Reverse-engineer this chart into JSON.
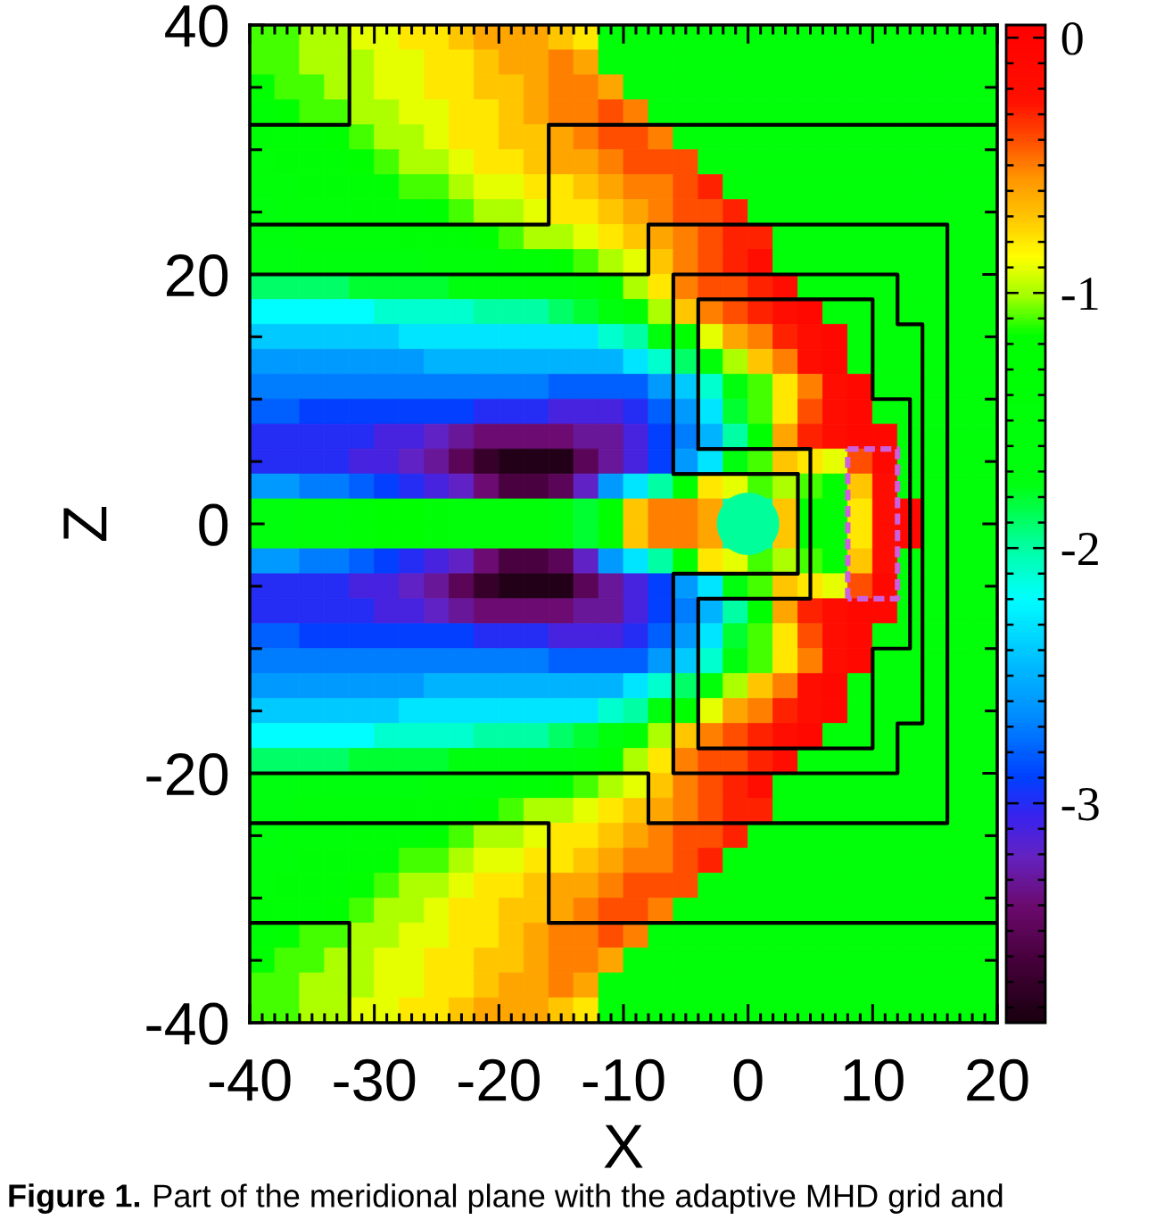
{
  "chart_data": {
    "type": "heatmap",
    "xlabel": "X",
    "ylabel": "Z",
    "annotations": [
      "Figure 1.",
      "Part of the meridional plane with the adaptive MHD grid and"
    ],
    "x": [
      -39,
      -37,
      -35,
      -33,
      -31,
      -29,
      -27,
      -25,
      -23,
      -21,
      -19,
      -17,
      -15,
      -13,
      -11,
      -9,
      -7,
      -5,
      -3,
      -1,
      1,
      3,
      5,
      7,
      9,
      11,
      13,
      15,
      17,
      19
    ],
    "y": [
      39,
      37,
      35,
      33,
      31,
      29,
      27,
      25,
      23,
      21,
      19,
      17,
      15,
      13,
      11,
      9,
      7,
      5,
      3,
      1,
      -1,
      -3,
      -5,
      -7,
      -9,
      -11,
      -13,
      -15,
      -17,
      -19,
      -21,
      -23,
      -25,
      -27,
      -29,
      -31,
      -33,
      -35,
      -37,
      -39
    ],
    "cells": [
      [
        -1.1,
        -1.1,
        -1.0,
        -1.0,
        -0.9,
        -0.9,
        -0.8,
        -0.8,
        -0.7,
        -0.6,
        -0.6,
        -0.6,
        -0.7,
        -0.8,
        -1.5,
        -1.5,
        -1.5,
        -1.5,
        -1.5,
        -1.5,
        -1.5,
        -1.5,
        -1.5,
        -1.5,
        -1.5,
        -1.5,
        -1.5,
        -1.5,
        -1.5,
        -1.5
      ],
      [
        -1.1,
        -1.1,
        -1.0,
        -1.0,
        -1.0,
        -0.9,
        -0.9,
        -0.8,
        -0.8,
        -0.7,
        -0.6,
        -0.6,
        -0.5,
        -0.6,
        -1.5,
        -1.5,
        -1.5,
        -1.5,
        -1.5,
        -1.5,
        -1.5,
        -1.5,
        -1.5,
        -1.5,
        -1.5,
        -1.5,
        -1.5,
        -1.5,
        -1.5,
        -1.5
      ],
      [
        -1.2,
        -1.1,
        -1.1,
        -1.0,
        -1.0,
        -0.9,
        -0.9,
        -0.8,
        -0.8,
        -0.7,
        -0.7,
        -0.6,
        -0.5,
        -0.5,
        -0.6,
        -1.5,
        -1.5,
        -1.5,
        -1.5,
        -1.5,
        -1.5,
        -1.5,
        -1.5,
        -1.5,
        -1.5,
        -1.5,
        -1.5,
        -1.5,
        -1.5,
        -1.5
      ],
      [
        -1.3,
        -1.2,
        -1.1,
        -1.1,
        -1.0,
        -1.0,
        -0.9,
        -0.9,
        -0.8,
        -0.8,
        -0.7,
        -0.6,
        -0.5,
        -0.5,
        -0.4,
        -0.5,
        -1.5,
        -1.5,
        -1.5,
        -1.5,
        -1.5,
        -1.5,
        -1.5,
        -1.5,
        -1.5,
        -1.5,
        -1.5,
        -1.5,
        -1.5,
        -1.5
      ],
      [
        -1.4,
        -1.3,
        -1.3,
        -1.2,
        -1.1,
        -1.0,
        -1.0,
        -0.9,
        -0.8,
        -0.8,
        -0.7,
        -0.7,
        -0.6,
        -0.5,
        -0.4,
        -0.4,
        -0.5,
        -1.5,
        -1.5,
        -1.5,
        -1.5,
        -1.5,
        -1.5,
        -1.5,
        -1.5,
        -1.5,
        -1.5,
        -1.5,
        -1.5,
        -1.5
      ],
      [
        -1.5,
        -1.4,
        -1.4,
        -1.3,
        -1.2,
        -1.1,
        -1.0,
        -1.0,
        -0.9,
        -0.8,
        -0.8,
        -0.7,
        -0.6,
        -0.6,
        -0.5,
        -0.4,
        -0.4,
        -0.4,
        -1.5,
        -1.5,
        -1.5,
        -1.5,
        -1.5,
        -1.5,
        -1.5,
        -1.5,
        -1.5,
        -1.5,
        -1.5,
        -1.5
      ],
      [
        -1.5,
        -1.5,
        -1.4,
        -1.4,
        -1.3,
        -1.3,
        -1.1,
        -1.1,
        -1.0,
        -0.9,
        -0.9,
        -0.8,
        -0.8,
        -0.7,
        -0.6,
        -0.5,
        -0.5,
        -0.4,
        -0.3,
        -1.5,
        -1.5,
        -1.5,
        -1.5,
        -1.5,
        -1.5,
        -1.5,
        -1.5,
        -1.5,
        -1.5,
        -1.5
      ],
      [
        -1.6,
        -1.5,
        -1.5,
        -1.5,
        -1.4,
        -1.4,
        -1.3,
        -1.2,
        -1.1,
        -1.0,
        -1.0,
        -0.9,
        -0.8,
        -0.8,
        -0.7,
        -0.6,
        -0.5,
        -0.4,
        -0.4,
        -0.3,
        -1.5,
        -1.5,
        -1.5,
        -1.5,
        -1.5,
        -1.5,
        -1.5,
        -1.5,
        -1.5,
        -1.5
      ],
      [
        -1.6,
        -1.6,
        -1.5,
        -1.5,
        -1.5,
        -1.5,
        -1.4,
        -1.4,
        -1.3,
        -1.2,
        -1.1,
        -1.0,
        -1.0,
        -0.9,
        -0.8,
        -0.7,
        -0.6,
        -0.5,
        -0.4,
        -0.3,
        -0.3,
        -1.5,
        -1.5,
        -1.5,
        -1.5,
        -1.5,
        -1.5,
        -1.5,
        -1.5,
        -1.5
      ],
      [
        -1.7,
        -1.7,
        -1.6,
        -1.6,
        -1.6,
        -1.6,
        -1.6,
        -1.5,
        -1.5,
        -1.5,
        -1.4,
        -1.3,
        -1.2,
        -1.1,
        -1.0,
        -0.9,
        -0.7,
        -0.5,
        -0.4,
        -0.3,
        -0.2,
        -1.5,
        -1.5,
        -1.5,
        -1.5,
        -1.5,
        -1.5,
        -1.5,
        -1.5,
        -1.5
      ],
      [
        -1.9,
        -1.9,
        -1.9,
        -1.9,
        -1.8,
        -1.8,
        -1.8,
        -1.8,
        -1.7,
        -1.7,
        -1.7,
        -1.6,
        -1.6,
        -1.5,
        -1.2,
        -1.0,
        -0.8,
        -0.5,
        -0.4,
        -0.4,
        -0.3,
        -0.2,
        -1.5,
        -1.5,
        -1.5,
        -1.5,
        -1.5,
        -1.5,
        -1.5,
        -1.5
      ],
      [
        -2.2,
        -2.2,
        -2.2,
        -2.2,
        -2.2,
        -2.1,
        -2.1,
        -2.1,
        -2.1,
        -2.0,
        -2.0,
        -2.0,
        -1.9,
        -1.8,
        -1.6,
        -1.3,
        -1.0,
        -0.7,
        -0.5,
        -0.4,
        -0.3,
        -0.2,
        -0.1,
        -1.5,
        -1.5,
        -1.5,
        -1.5,
        -1.5,
        -1.5,
        -1.5
      ],
      [
        -2.4,
        -2.4,
        -2.4,
        -2.4,
        -2.4,
        -2.4,
        -2.3,
        -2.3,
        -2.3,
        -2.3,
        -2.3,
        -2.3,
        -2.3,
        -2.3,
        -2.1,
        -2.0,
        -1.6,
        -1.2,
        -0.9,
        -0.6,
        -0.5,
        -0.3,
        -0.2,
        -0.1,
        -1.5,
        -1.5,
        -1.5,
        -1.5,
        -1.5,
        -1.5
      ],
      [
        -2.6,
        -2.6,
        -2.6,
        -2.6,
        -2.6,
        -2.6,
        -2.6,
        -2.5,
        -2.5,
        -2.5,
        -2.5,
        -2.5,
        -2.5,
        -2.5,
        -2.5,
        -2.3,
        -2.1,
        -1.9,
        -1.5,
        -1.0,
        -0.7,
        -0.5,
        -0.2,
        -0.1,
        -1.5,
        -1.5,
        -1.5,
        -1.5,
        -1.5,
        -1.5
      ],
      [
        -2.7,
        -2.7,
        -2.7,
        -2.7,
        -2.7,
        -2.7,
        -2.7,
        -2.7,
        -2.7,
        -2.7,
        -2.7,
        -2.7,
        -2.8,
        -2.8,
        -2.8,
        -2.8,
        -2.6,
        -2.4,
        -2.1,
        -1.6,
        -1.1,
        -0.8,
        -0.5,
        -0.2,
        -0.1,
        -1.5,
        -1.5,
        -1.5,
        -1.5,
        -1.5
      ],
      [
        -2.8,
        -2.8,
        -2.9,
        -2.9,
        -2.9,
        -2.9,
        -2.9,
        -2.9,
        -2.9,
        -3.0,
        -3.0,
        -3.0,
        -3.1,
        -3.1,
        -3.1,
        -3.0,
        -2.8,
        -2.6,
        -2.3,
        -1.8,
        -1.1,
        -0.8,
        -0.4,
        -0.2,
        -0.1,
        -1.5,
        -1.5,
        -1.5,
        -1.5,
        -1.5
      ],
      [
        -3.0,
        -3.0,
        -3.0,
        -3.0,
        -3.0,
        -3.1,
        -3.1,
        -3.2,
        -3.3,
        -3.4,
        -3.4,
        -3.4,
        -3.4,
        -3.3,
        -3.3,
        -3.1,
        -2.9,
        -2.7,
        -2.5,
        -2.0,
        -1.2,
        -0.6,
        -0.3,
        -0.2,
        -0.1,
        -0.1,
        -1.5,
        -1.5,
        -1.5,
        -1.5
      ],
      [
        -3.0,
        -3.0,
        -3.0,
        -3.0,
        -3.1,
        -3.1,
        -3.2,
        -3.3,
        -3.5,
        -3.7,
        -3.8,
        -3.8,
        -3.8,
        -3.5,
        -3.3,
        -3.1,
        -2.9,
        -2.6,
        -2.3,
        -1.7,
        -1.1,
        -0.7,
        -0.8,
        -0.9,
        -0.4,
        -0.1,
        -1.5,
        -1.5,
        -1.5,
        -1.5
      ],
      [
        -2.6,
        -2.6,
        -2.7,
        -2.7,
        -2.8,
        -2.9,
        -3.0,
        -3.1,
        -3.2,
        -3.4,
        -3.6,
        -3.6,
        -3.5,
        -3.2,
        -2.6,
        -2.3,
        -2.0,
        -1.2,
        -0.8,
        -0.9,
        -1.1,
        -1.0,
        -1.1,
        -1.2,
        -0.7,
        -0.2,
        -1.5,
        -1.5,
        -1.5,
        -1.5
      ],
      [
        -1.6,
        -1.6,
        -1.5,
        -1.5,
        -1.3,
        -1.2,
        -1.2,
        -1.4,
        -1.5,
        -1.5,
        -1.5,
        -1.5,
        -1.6,
        -1.8,
        -1.2,
        -0.7,
        -0.5,
        -0.5,
        -0.6,
        -2.0,
        -2.0,
        -0.7,
        -1.2,
        -1.3,
        -0.8,
        -0.2,
        -0.1,
        -1.5,
        -1.5,
        -1.5
      ],
      [
        -1.6,
        -1.6,
        -1.5,
        -1.5,
        -1.3,
        -1.2,
        -1.2,
        -1.4,
        -1.5,
        -1.5,
        -1.5,
        -1.5,
        -1.6,
        -1.8,
        -1.2,
        -0.7,
        -0.5,
        -0.5,
        -0.6,
        -2.0,
        -2.0,
        -0.7,
        -1.2,
        -1.3,
        -0.8,
        -0.2,
        -0.1,
        -1.5,
        -1.5,
        -1.5
      ],
      [
        -2.6,
        -2.6,
        -2.7,
        -2.7,
        -2.8,
        -2.9,
        -3.0,
        -3.1,
        -3.2,
        -3.4,
        -3.6,
        -3.6,
        -3.5,
        -3.2,
        -2.6,
        -2.3,
        -2.0,
        -1.2,
        -0.8,
        -0.9,
        -1.1,
        -1.0,
        -1.1,
        -1.2,
        -0.7,
        -0.2,
        -1.5,
        -1.5,
        -1.5,
        -1.5
      ],
      [
        -3.0,
        -3.0,
        -3.0,
        -3.0,
        -3.1,
        -3.1,
        -3.2,
        -3.3,
        -3.5,
        -3.7,
        -3.8,
        -3.8,
        -3.8,
        -3.5,
        -3.3,
        -3.1,
        -2.9,
        -2.6,
        -2.3,
        -1.7,
        -1.1,
        -0.7,
        -0.8,
        -0.9,
        -0.4,
        -0.1,
        -1.5,
        -1.5,
        -1.5,
        -1.5
      ],
      [
        -3.0,
        -3.0,
        -3.0,
        -3.0,
        -3.0,
        -3.1,
        -3.1,
        -3.2,
        -3.3,
        -3.4,
        -3.4,
        -3.4,
        -3.4,
        -3.3,
        -3.3,
        -3.1,
        -2.9,
        -2.7,
        -2.5,
        -2.0,
        -1.2,
        -0.6,
        -0.3,
        -0.2,
        -0.1,
        -0.1,
        -1.5,
        -1.5,
        -1.5,
        -1.5
      ],
      [
        -2.8,
        -2.8,
        -2.9,
        -2.9,
        -2.9,
        -2.9,
        -2.9,
        -2.9,
        -2.9,
        -3.0,
        -3.0,
        -3.0,
        -3.1,
        -3.1,
        -3.1,
        -3.0,
        -2.8,
        -2.6,
        -2.3,
        -1.8,
        -1.1,
        -0.8,
        -0.4,
        -0.2,
        -0.1,
        -1.5,
        -1.5,
        -1.5,
        -1.5,
        -1.5
      ],
      [
        -2.7,
        -2.7,
        -2.7,
        -2.7,
        -2.7,
        -2.7,
        -2.7,
        -2.7,
        -2.7,
        -2.7,
        -2.7,
        -2.7,
        -2.8,
        -2.8,
        -2.8,
        -2.8,
        -2.6,
        -2.4,
        -2.1,
        -1.6,
        -1.1,
        -0.8,
        -0.5,
        -0.2,
        -0.1,
        -1.5,
        -1.5,
        -1.5,
        -1.5,
        -1.5
      ],
      [
        -2.6,
        -2.6,
        -2.6,
        -2.6,
        -2.6,
        -2.6,
        -2.6,
        -2.5,
        -2.5,
        -2.5,
        -2.5,
        -2.5,
        -2.5,
        -2.5,
        -2.5,
        -2.3,
        -2.1,
        -1.9,
        -1.5,
        -1.0,
        -0.7,
        -0.5,
        -0.2,
        -0.1,
        -1.5,
        -1.5,
        -1.5,
        -1.5,
        -1.5,
        -1.5
      ],
      [
        -2.4,
        -2.4,
        -2.4,
        -2.4,
        -2.4,
        -2.4,
        -2.3,
        -2.3,
        -2.3,
        -2.3,
        -2.3,
        -2.3,
        -2.3,
        -2.3,
        -2.1,
        -2.0,
        -1.6,
        -1.2,
        -0.9,
        -0.6,
        -0.5,
        -0.3,
        -0.2,
        -0.1,
        -1.5,
        -1.5,
        -1.5,
        -1.5,
        -1.5,
        -1.5
      ],
      [
        -2.2,
        -2.2,
        -2.2,
        -2.2,
        -2.2,
        -2.1,
        -2.1,
        -2.1,
        -2.1,
        -2.0,
        -2.0,
        -2.0,
        -1.9,
        -1.8,
        -1.6,
        -1.3,
        -1.0,
        -0.7,
        -0.5,
        -0.4,
        -0.3,
        -0.2,
        -0.1,
        -1.5,
        -1.5,
        -1.5,
        -1.5,
        -1.5,
        -1.5,
        -1.5
      ],
      [
        -1.9,
        -1.9,
        -1.9,
        -1.9,
        -1.8,
        -1.8,
        -1.8,
        -1.8,
        -1.7,
        -1.7,
        -1.7,
        -1.6,
        -1.6,
        -1.5,
        -1.2,
        -1.0,
        -0.8,
        -0.5,
        -0.4,
        -0.4,
        -0.3,
        -0.2,
        -1.5,
        -1.5,
        -1.5,
        -1.5,
        -1.5,
        -1.5,
        -1.5,
        -1.5
      ],
      [
        -1.7,
        -1.7,
        -1.6,
        -1.6,
        -1.6,
        -1.6,
        -1.6,
        -1.5,
        -1.5,
        -1.5,
        -1.4,
        -1.3,
        -1.2,
        -1.1,
        -1.0,
        -0.9,
        -0.7,
        -0.5,
        -0.4,
        -0.3,
        -0.2,
        -1.5,
        -1.5,
        -1.5,
        -1.5,
        -1.5,
        -1.5,
        -1.5,
        -1.5,
        -1.5
      ],
      [
        -1.6,
        -1.6,
        -1.5,
        -1.5,
        -1.5,
        -1.5,
        -1.4,
        -1.4,
        -1.3,
        -1.2,
        -1.1,
        -1.0,
        -1.0,
        -0.9,
        -0.8,
        -0.7,
        -0.6,
        -0.5,
        -0.4,
        -0.3,
        -0.3,
        -1.5,
        -1.5,
        -1.5,
        -1.5,
        -1.5,
        -1.5,
        -1.5,
        -1.5,
        -1.5
      ],
      [
        -1.6,
        -1.5,
        -1.5,
        -1.5,
        -1.4,
        -1.4,
        -1.3,
        -1.2,
        -1.1,
        -1.0,
        -1.0,
        -0.9,
        -0.8,
        -0.8,
        -0.7,
        -0.6,
        -0.5,
        -0.4,
        -0.4,
        -0.3,
        -1.5,
        -1.5,
        -1.5,
        -1.5,
        -1.5,
        -1.5,
        -1.5,
        -1.5,
        -1.5,
        -1.5
      ],
      [
        -1.5,
        -1.5,
        -1.4,
        -1.4,
        -1.3,
        -1.3,
        -1.1,
        -1.1,
        -1.0,
        -0.9,
        -0.9,
        -0.8,
        -0.8,
        -0.7,
        -0.6,
        -0.5,
        -0.5,
        -0.4,
        -0.3,
        -1.5,
        -1.5,
        -1.5,
        -1.5,
        -1.5,
        -1.5,
        -1.5,
        -1.5,
        -1.5,
        -1.5,
        -1.5
      ],
      [
        -1.5,
        -1.4,
        -1.4,
        -1.3,
        -1.2,
        -1.1,
        -1.0,
        -1.0,
        -0.9,
        -0.8,
        -0.8,
        -0.7,
        -0.6,
        -0.6,
        -0.5,
        -0.4,
        -0.4,
        -0.4,
        -1.5,
        -1.5,
        -1.5,
        -1.5,
        -1.5,
        -1.5,
        -1.5,
        -1.5,
        -1.5,
        -1.5,
        -1.5,
        -1.5
      ],
      [
        -1.4,
        -1.3,
        -1.3,
        -1.2,
        -1.1,
        -1.0,
        -1.0,
        -0.9,
        -0.8,
        -0.8,
        -0.7,
        -0.7,
        -0.6,
        -0.5,
        -0.4,
        -0.4,
        -0.5,
        -1.5,
        -1.5,
        -1.5,
        -1.5,
        -1.5,
        -1.5,
        -1.5,
        -1.5,
        -1.5,
        -1.5,
        -1.5,
        -1.5,
        -1.5
      ],
      [
        -1.3,
        -1.2,
        -1.1,
        -1.1,
        -1.0,
        -1.0,
        -0.9,
        -0.9,
        -0.8,
        -0.8,
        -0.7,
        -0.6,
        -0.5,
        -0.5,
        -0.4,
        -0.5,
        -1.5,
        -1.5,
        -1.5,
        -1.5,
        -1.5,
        -1.5,
        -1.5,
        -1.5,
        -1.5,
        -1.5,
        -1.5,
        -1.5,
        -1.5,
        -1.5
      ],
      [
        -1.2,
        -1.1,
        -1.1,
        -1.0,
        -1.0,
        -0.9,
        -0.9,
        -0.8,
        -0.8,
        -0.7,
        -0.7,
        -0.6,
        -0.5,
        -0.5,
        -0.6,
        -1.5,
        -1.5,
        -1.5,
        -1.5,
        -1.5,
        -1.5,
        -1.5,
        -1.5,
        -1.5,
        -1.5,
        -1.5,
        -1.5,
        -1.5,
        -1.5,
        -1.5
      ],
      [
        -1.1,
        -1.1,
        -1.0,
        -1.0,
        -1.0,
        -0.9,
        -0.9,
        -0.8,
        -0.8,
        -0.7,
        -0.6,
        -0.6,
        -0.5,
        -0.6,
        -1.5,
        -1.5,
        -1.5,
        -1.5,
        -1.5,
        -1.5,
        -1.5,
        -1.5,
        -1.5,
        -1.5,
        -1.5,
        -1.5,
        -1.5,
        -1.5,
        -1.5,
        -1.5
      ],
      [
        -1.1,
        -1.1,
        -1.0,
        -1.0,
        -0.9,
        -0.9,
        -0.8,
        -0.8,
        -0.7,
        -0.6,
        -0.6,
        -0.6,
        -0.7,
        -0.8,
        -1.5,
        -1.5,
        -1.5,
        -1.5,
        -1.5,
        -1.5,
        -1.5,
        -1.5,
        -1.5,
        -1.5,
        -1.5,
        -1.5,
        -1.5,
        -1.5,
        -1.5,
        -1.5
      ]
    ],
    "clim": [
      -3.86,
      0.05
    ],
    "cticks": [
      0,
      {
        "value": -0.1,
        "label": null
      },
      {
        "value": -0.2,
        "label": null
      },
      {
        "value": -0.3,
        "label": null
      },
      {
        "value": -0.4,
        "label": null
      },
      {
        "value": -0.5,
        "label": null
      },
      {
        "value": -0.6,
        "label": null
      },
      {
        "value": -0.7,
        "label": null
      },
      {
        "value": -0.8,
        "label": null
      },
      {
        "value": -0.9,
        "label": null
      },
      -1,
      {
        "value": -1.1,
        "label": null
      },
      {
        "value": -1.2,
        "label": null
      },
      {
        "value": -1.3,
        "label": null
      },
      {
        "value": -1.4,
        "label": null
      },
      {
        "value": -1.5,
        "label": null
      },
      {
        "value": -1.6,
        "label": null
      },
      {
        "value": -1.7,
        "label": null
      },
      {
        "value": -1.8,
        "label": null
      },
      {
        "value": -1.9,
        "label": null
      },
      -2,
      {
        "value": -2.1,
        "label": null
      },
      {
        "value": -2.2,
        "label": null
      },
      {
        "value": -2.3,
        "label": null
      },
      {
        "value": -2.4,
        "label": null
      },
      {
        "value": -2.5,
        "label": null
      },
      {
        "value": -2.6,
        "label": null
      },
      {
        "value": -2.7,
        "label": null
      },
      {
        "value": -2.8,
        "label": null
      },
      {
        "value": -2.9,
        "label": null
      },
      -3,
      {
        "value": -3.1,
        "label": null
      },
      {
        "value": -3.2,
        "label": null
      },
      {
        "value": -3.3,
        "label": null
      },
      {
        "value": -3.4,
        "label": null
      },
      {
        "value": -3.5,
        "label": null
      },
      {
        "value": -3.6,
        "label": null
      },
      {
        "value": -3.7,
        "label": null
      },
      {
        "value": -3.8,
        "label": null
      }
    ],
    "xlim": [
      -40,
      20
    ],
    "ylim": [
      -40,
      40
    ],
    "xticks": [
      -40,
      {
        "value": -39,
        "label": null
      },
      {
        "value": -38,
        "label": null
      },
      {
        "value": -37,
        "label": null
      },
      {
        "value": -36,
        "label": null
      },
      {
        "value": -35,
        "label": null
      },
      {
        "value": -34,
        "label": null
      },
      {
        "value": -33,
        "label": null
      },
      {
        "value": -32,
        "label": null
      },
      {
        "value": -31,
        "label": null
      },
      -30,
      {
        "value": -29,
        "label": null
      },
      {
        "value": -28,
        "label": null
      },
      {
        "value": -27,
        "label": null
      },
      {
        "value": -26,
        "label": null
      },
      {
        "value": -25,
        "label": null
      },
      {
        "value": -24,
        "label": null
      },
      {
        "value": -23,
        "label": null
      },
      {
        "value": -22,
        "label": null
      },
      {
        "value": -21,
        "label": null
      },
      -20,
      {
        "value": -19,
        "label": null
      },
      {
        "value": -18,
        "label": null
      },
      {
        "value": -17,
        "label": null
      },
      {
        "value": -16,
        "label": null
      },
      {
        "value": -15,
        "label": null
      },
      {
        "value": -14,
        "label": null
      },
      {
        "value": -13,
        "label": null
      },
      {
        "value": -12,
        "label": null
      },
      {
        "value": -11,
        "label": null
      },
      -10,
      {
        "value": -9,
        "label": null
      },
      {
        "value": -8,
        "label": null
      },
      {
        "value": -7,
        "label": null
      },
      {
        "value": -6,
        "label": null
      },
      {
        "value": -5,
        "label": null
      },
      {
        "value": -4,
        "label": null
      },
      {
        "value": -3,
        "label": null
      },
      {
        "value": -2,
        "label": null
      },
      {
        "value": -1,
        "label": null
      },
      0,
      {
        "value": 1,
        "label": null
      },
      {
        "value": 2,
        "label": null
      },
      {
        "value": 3,
        "label": null
      },
      {
        "value": 4,
        "label": null
      },
      {
        "value": 5,
        "label": null
      },
      {
        "value": 6,
        "label": null
      },
      {
        "value": 7,
        "label": null
      },
      {
        "value": 8,
        "label": null
      },
      {
        "value": 9,
        "label": null
      },
      10,
      {
        "value": 11,
        "label": null
      },
      {
        "value": 12,
        "label": null
      },
      {
        "value": 13,
        "label": null
      },
      {
        "value": 14,
        "label": null
      },
      {
        "value": 15,
        "label": null
      },
      {
        "value": 16,
        "label": null
      },
      {
        "value": 17,
        "label": null
      },
      {
        "value": 18,
        "label": null
      },
      {
        "value": 19,
        "label": null
      },
      20
    ],
    "yticks": [
      -40,
      {
        "value": -35,
        "label": null
      },
      {
        "value": -30,
        "label": null
      },
      {
        "value": -25,
        "label": null
      },
      -20,
      {
        "value": -15,
        "label": null
      },
      {
        "value": -10,
        "label": null
      },
      {
        "value": -5,
        "label": null
      },
      0,
      {
        "value": 5,
        "label": null
      },
      {
        "value": 10,
        "label": null
      },
      {
        "value": 15,
        "label": null
      },
      20,
      {
        "value": 25,
        "label": null
      },
      {
        "value": 30,
        "label": null
      },
      {
        "value": 35,
        "label": null
      },
      40
    ],
    "series": [
      {
        "type": "line",
        "color": "#000000",
        "x": [
          -40,
          -32,
          -32
        ],
        "values": [
          32,
          32,
          40
        ]
      },
      {
        "type": "line",
        "color": "#000000",
        "x": [
          -40,
          -16,
          -16,
          20
        ],
        "values": [
          24,
          24,
          32,
          32
        ]
      },
      {
        "type": "line",
        "color": "#000000",
        "x": [
          -40,
          -8,
          -8,
          16,
          16,
          -8,
          -8,
          -40
        ],
        "values": [
          20,
          20,
          24,
          24,
          -24,
          -24,
          -20,
          -20
        ]
      },
      {
        "type": "line",
        "color": "#000000",
        "x": [
          -6,
          -6,
          12,
          12,
          14,
          14,
          12,
          12,
          -6,
          -6,
          4,
          4
        ],
        "values": [
          4,
          20,
          20,
          16,
          16,
          -16,
          -16,
          -20,
          -20,
          -4,
          -4,
          4
        ]
      },
      {
        "type": "line",
        "color": "#000000",
        "x": [
          4,
          -6
        ],
        "values": [
          4,
          4
        ]
      },
      {
        "type": "line",
        "color": "#000000",
        "x": [
          -4,
          -4,
          10,
          10,
          13,
          13,
          10,
          10,
          -4,
          -4,
          5,
          5
        ],
        "values": [
          6,
          18,
          18,
          10,
          10,
          -10,
          -10,
          -18,
          -18,
          -6,
          -6,
          6
        ]
      },
      {
        "type": "line",
        "color": "#000000",
        "x": [
          5,
          -4
        ],
        "values": [
          6,
          6
        ]
      },
      {
        "type": "line",
        "color": "#000000",
        "x": [
          -40,
          -16,
          -16,
          20
        ],
        "values": [
          -24,
          -24,
          -32,
          -32
        ]
      },
      {
        "type": "line",
        "color": "#000000",
        "x": [
          -40,
          -32,
          -32
        ],
        "values": [
          -32,
          -32,
          -40
        ]
      },
      {
        "type": "line",
        "color": "#cc5fdc",
        "line_style": "dashed",
        "x": [
          8,
          12,
          12,
          8
        ],
        "values": [
          6,
          6,
          -6,
          -6
        ]
      },
      {
        "type": "line",
        "color": "#cc5fdc",
        "line_style": "dashed",
        "x": [
          8,
          8
        ],
        "values": [
          -6,
          6
        ]
      }
    ]
  }
}
